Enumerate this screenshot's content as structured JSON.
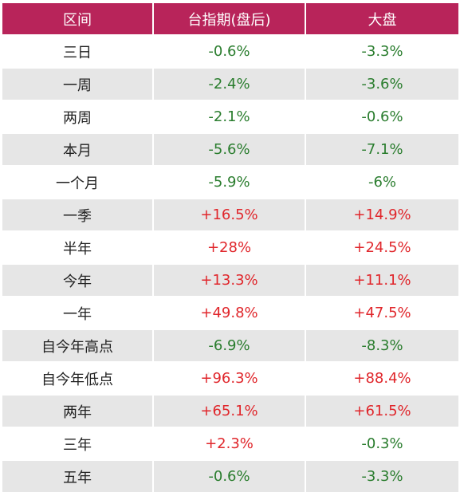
{
  "headers": [
    "区间",
    "台指期(盘后)",
    "大盘"
  ],
  "colors": {
    "header_bg": "#b8245a",
    "header_text": "#ffffff",
    "row_alt": "#e6e6e6",
    "negative": "#2a7d2e",
    "positive": "#e0262b"
  },
  "rows": [
    {
      "period": "三日",
      "futures": "-0.6%",
      "market": "-3.3%"
    },
    {
      "period": "一周",
      "futures": "-2.4%",
      "market": "-3.6%"
    },
    {
      "period": "两周",
      "futures": "-2.1%",
      "market": "-0.6%"
    },
    {
      "period": "本月",
      "futures": "-5.6%",
      "market": "-7.1%"
    },
    {
      "period": "一个月",
      "futures": "-5.9%",
      "market": "-6%"
    },
    {
      "period": "一季",
      "futures": "+16.5%",
      "market": "+14.9%"
    },
    {
      "period": "半年",
      "futures": "+28%",
      "market": "+24.5%"
    },
    {
      "period": "今年",
      "futures": "+13.3%",
      "market": "+11.1%"
    },
    {
      "period": "一年",
      "futures": "+49.8%",
      "market": "+47.5%"
    },
    {
      "period": "自今年高点",
      "futures": "-6.9%",
      "market": "-8.3%"
    },
    {
      "period": "自今年低点",
      "futures": "+96.3%",
      "market": "+88.4%"
    },
    {
      "period": "两年",
      "futures": "+65.1%",
      "market": "+61.5%"
    },
    {
      "period": "三年",
      "futures": "+2.3%",
      "market": "-0.3%"
    },
    {
      "period": "五年",
      "futures": "-0.6%",
      "market": "-3.3%"
    }
  ]
}
